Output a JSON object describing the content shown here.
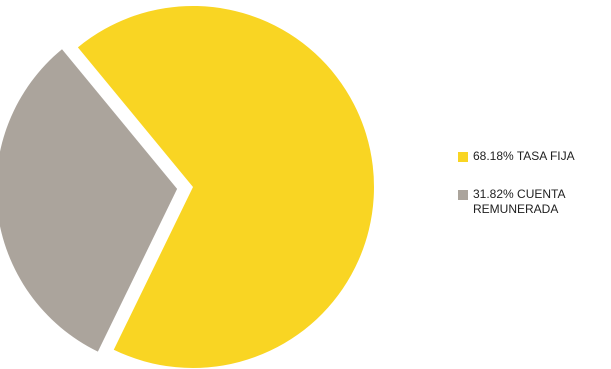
{
  "chart_data": {
    "type": "pie",
    "title": "",
    "legend_position": "right",
    "slices": [
      {
        "label": "TASA FIJA",
        "legend_text": "68.18% TASA FIJA",
        "percent": 68.18,
        "color": "#F9D523",
        "exploded": false
      },
      {
        "label": "CUENTA REMUNERADA",
        "legend_text": "31.82% CUENTA REMUNERADA",
        "percent": 31.82,
        "color": "#ABA49C",
        "exploded": true
      }
    ]
  }
}
